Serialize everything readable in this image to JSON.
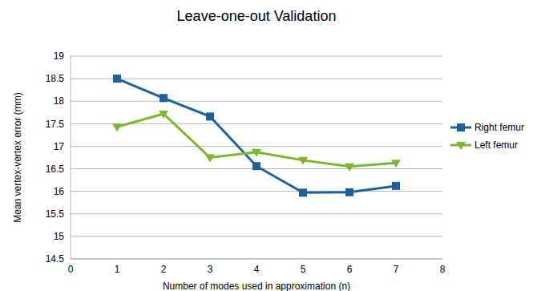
{
  "chart_data": {
    "type": "line",
    "title": "Leave-one-out Validation",
    "x_label": "Number of modes used in approximation (n)",
    "y_label": "Mean vertex-vertex error (mm)",
    "x": [
      1,
      2,
      3,
      4,
      5,
      6,
      7
    ],
    "series": [
      {
        "name": "Right femur",
        "color": "#1f5f9a",
        "marker": "square",
        "values": [
          18.5,
          18.07,
          17.66,
          16.56,
          15.97,
          15.98,
          16.12
        ]
      },
      {
        "name": "Left femur",
        "color": "#7cb82f",
        "marker": "triangle_down",
        "values": [
          17.43,
          17.72,
          16.75,
          16.87,
          16.69,
          16.55,
          16.63
        ]
      }
    ],
    "xlim": [
      0,
      8
    ],
    "xticks": [
      0,
      1,
      2,
      3,
      4,
      5,
      6,
      7,
      8
    ],
    "ylim": [
      14.5,
      19
    ],
    "yticks": [
      14.5,
      15,
      15.5,
      16,
      16.5,
      17,
      17.5,
      18,
      18.5,
      19
    ],
    "grid": true
  }
}
